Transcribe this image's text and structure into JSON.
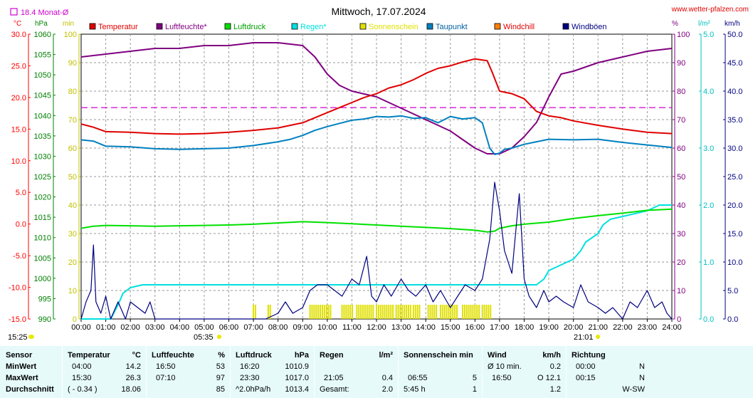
{
  "header": {
    "title": "Mittwoch, 17.07.2024",
    "url": "www.wetter-pfalzen.com",
    "monat_label": "18.4 Monat-Ø",
    "units_left": [
      "°C",
      "hPa",
      "min"
    ],
    "units_right": [
      "%",
      "l/m²",
      "km/h"
    ],
    "footer_left_time": "15:25",
    "sunrise_time": "05:35",
    "sunset_time": "21:01"
  },
  "colors": {
    "temperatur": "#e00000",
    "luftfeuchte": "#800080",
    "luftdruck": "#00e000",
    "regen": "#00e0e0",
    "sonnenschein": "#e0e000",
    "taupunkt": "#0080c0",
    "windchill": "#ff8000",
    "windboeen": "#000080",
    "monat": "#d000d0",
    "axis_temp": "#ff0000",
    "axis_hpa": "#008000",
    "axis_min": "#c0c000",
    "axis_pct": "#800080",
    "axis_rain": "#00c0c0",
    "axis_wind": "#000080"
  },
  "chart_data": {
    "type": "line",
    "title": "Mittwoch, 17.07.2024",
    "x_ticks": [
      "00:00",
      "01:00",
      "02:00",
      "03:00",
      "04:00",
      "05:00",
      "06:00",
      "07:00",
      "08:00",
      "09:00",
      "10:00",
      "11:00",
      "12:00",
      "13:00",
      "14:00",
      "15:00",
      "16:00",
      "17:00",
      "18:00",
      "19:00",
      "20:00",
      "21:00",
      "22:00",
      "23:00",
      "24:00"
    ],
    "axes": {
      "temp": {
        "unit": "°C",
        "range": [
          -15,
          30
        ],
        "ticks": [
          "30.0",
          "25.0",
          "20.0",
          "15.0",
          "10.0",
          "5.0",
          "0.0",
          "-5.0",
          "-10.0",
          "-15.0"
        ]
      },
      "hpa": {
        "unit": "hPa",
        "range": [
          990,
          1060
        ],
        "ticks": [
          "1060",
          "1055",
          "1050",
          "1045",
          "1040",
          "1035",
          "1030",
          "1025",
          "1020",
          "1015",
          "1010",
          "1005",
          "1000",
          "995",
          "990"
        ]
      },
      "min": {
        "unit": "min",
        "range": [
          0,
          100
        ],
        "ticks": [
          "100",
          "90",
          "80",
          "70",
          "60",
          "50",
          "40",
          "30",
          "20",
          "10",
          "0"
        ]
      },
      "pct": {
        "unit": "%",
        "range": [
          0,
          100
        ],
        "ticks": [
          "100",
          "90",
          "80",
          "70",
          "60",
          "50",
          "40",
          "30",
          "20",
          "10",
          "0"
        ]
      },
      "rain": {
        "unit": "l/m²",
        "range": [
          0,
          5
        ],
        "ticks": [
          "5.0",
          "4.0",
          "3.0",
          "2.0",
          "1.0",
          "0.0"
        ]
      },
      "wind": {
        "unit": "km/h",
        "range": [
          0,
          50
        ],
        "ticks": [
          "50.0",
          "45.0",
          "40.0",
          "35.0",
          "30.0",
          "25.0",
          "20.0",
          "15.0",
          "10.0",
          "5.0",
          "0.0"
        ]
      }
    },
    "monat_mittel": 18.4,
    "legend": [
      {
        "key": "temperatur",
        "label": "Temperatur"
      },
      {
        "key": "luftfeuchte",
        "label": "Luftfeuchte*"
      },
      {
        "key": "luftdruck",
        "label": "Luftdruck"
      },
      {
        "key": "regen",
        "label": "Regen*"
      },
      {
        "key": "sonnenschein",
        "label": "Sonnenschein"
      },
      {
        "key": "taupunkt",
        "label": "Taupunkt"
      },
      {
        "key": "windchill",
        "label": "Windchill"
      },
      {
        "key": "windboeen",
        "label": "Windböen"
      }
    ],
    "series": {
      "temperatur": {
        "axis": "temp",
        "x": [
          0,
          0.5,
          1,
          2,
          3,
          4,
          5,
          6,
          7,
          8,
          8.5,
          9,
          9.5,
          10,
          10.5,
          11,
          11.5,
          12,
          12.5,
          13,
          13.5,
          14,
          14.5,
          15,
          15.5,
          16,
          16.5,
          16.7,
          17,
          17.5,
          18,
          18.5,
          19,
          19.5,
          20,
          21,
          22,
          23,
          24
        ],
        "y": [
          15.8,
          15.3,
          14.6,
          14.5,
          14.3,
          14.2,
          14.3,
          14.5,
          14.8,
          15.2,
          15.6,
          16.0,
          16.8,
          17.6,
          18.4,
          19.2,
          20.0,
          20.6,
          21.5,
          22.0,
          22.8,
          23.8,
          24.6,
          25.0,
          25.6,
          26.1,
          25.8,
          24.0,
          21.0,
          20.6,
          19.8,
          17.8,
          17.1,
          16.8,
          16.3,
          15.6,
          15.0,
          14.5,
          14.3
        ]
      },
      "luftfeuchte": {
        "axis": "pct",
        "x": [
          0,
          1,
          2,
          3,
          4,
          5,
          6,
          7,
          8,
          9,
          9.5,
          10,
          10.5,
          11,
          11.5,
          12,
          12.5,
          13,
          13.5,
          14,
          14.5,
          15,
          15.5,
          16,
          16.5,
          16.7,
          17,
          17.5,
          18,
          18.5,
          19,
          19.5,
          20,
          21,
          22,
          23,
          24
        ],
        "y": [
          92,
          93,
          94,
          95,
          95,
          96,
          96,
          97,
          97,
          96,
          92,
          86,
          82,
          80,
          79,
          78,
          76,
          74,
          72,
          70,
          68,
          66,
          63,
          60,
          58,
          58,
          58,
          60,
          64,
          69,
          78,
          86,
          87,
          90,
          92,
          94,
          95
        ]
      },
      "luftdruck": {
        "axis": "hpa",
        "x": [
          0,
          0.5,
          1,
          2,
          3,
          4,
          5,
          6,
          7,
          8,
          9,
          10,
          11,
          12,
          13,
          14,
          15,
          16,
          16.5,
          16.8,
          17,
          17.5,
          18,
          19,
          20,
          21,
          22,
          23,
          24
        ],
        "y": [
          1012.3,
          1012.8,
          1013.0,
          1012.9,
          1012.8,
          1012.9,
          1013.0,
          1013.1,
          1013.3,
          1013.6,
          1013.9,
          1013.7,
          1013.4,
          1013.1,
          1012.8,
          1012.5,
          1012.2,
          1011.8,
          1011.4,
          1011.6,
          1012.3,
          1012.9,
          1013.3,
          1013.8,
          1014.7,
          1015.4,
          1016.0,
          1016.7,
          1017.0
        ]
      },
      "regen": {
        "axis": "rain",
        "x": [
          0,
          1,
          1.2,
          1.5,
          1.7,
          2,
          2.5,
          3,
          4,
          5,
          6,
          7,
          8,
          9,
          10,
          11,
          12,
          13,
          14,
          15,
          16,
          17,
          18,
          18.5,
          18.8,
          19,
          19.5,
          20,
          20.3,
          20.5,
          21,
          21.2,
          21.5,
          22,
          22.5,
          23,
          23.5,
          24
        ],
        "y": [
          0,
          0,
          0,
          0.25,
          0.45,
          0.55,
          0.6,
          0.6,
          0.6,
          0.6,
          0.6,
          0.6,
          0.6,
          0.6,
          0.6,
          0.6,
          0.6,
          0.6,
          0.6,
          0.6,
          0.6,
          0.6,
          0.6,
          0.6,
          0.7,
          0.85,
          0.95,
          1.05,
          1.2,
          1.35,
          1.5,
          1.65,
          1.75,
          1.8,
          1.85,
          1.9,
          2.0,
          2.0
        ]
      },
      "taupunkt": {
        "axis": "temp",
        "x": [
          0,
          0.5,
          1,
          2,
          3,
          4,
          5,
          6,
          7,
          8,
          8.5,
          9,
          9.5,
          10,
          10.5,
          11,
          11.5,
          12,
          12.5,
          13,
          13.5,
          14,
          14.5,
          15,
          15.5,
          16,
          16.3,
          16.6,
          16.8,
          17,
          17.2,
          17.5,
          18,
          18.5,
          19,
          20,
          21,
          22,
          23,
          24
        ],
        "y": [
          13.3,
          13.1,
          12.3,
          12.2,
          11.9,
          11.8,
          11.9,
          12.0,
          12.4,
          13.0,
          13.4,
          14.0,
          14.8,
          15.4,
          15.9,
          16.4,
          16.6,
          17.0,
          16.9,
          17.1,
          16.7,
          16.8,
          16.0,
          17.0,
          16.6,
          16.8,
          16.0,
          12.0,
          11.0,
          11.2,
          11.8,
          12.0,
          12.6,
          13.0,
          13.4,
          13.3,
          13.4,
          12.9,
          12.5,
          12.1
        ]
      },
      "windboeen": {
        "axis": "wind",
        "x": [
          0,
          0.2,
          0.4,
          0.5,
          0.6,
          0.8,
          1,
          1.2,
          1.5,
          1.8,
          2,
          2.3,
          2.6,
          2.8,
          3,
          3.5,
          4,
          4.5,
          5,
          5.5,
          6,
          6.5,
          7,
          7.5,
          8,
          8.3,
          8.6,
          9,
          9.3,
          9.6,
          10,
          10.3,
          10.6,
          11,
          11.3,
          11.6,
          11.8,
          12,
          12.3,
          12.6,
          13,
          13.3,
          13.6,
          14,
          14.3,
          14.6,
          15,
          15.3,
          15.6,
          16,
          16.3,
          16.6,
          16.8,
          17,
          17.2,
          17.5,
          17.8,
          18,
          18.2,
          18.5,
          18.8,
          19,
          19.3,
          19.6,
          20,
          20.3,
          20.6,
          21,
          21.3,
          21.6,
          22,
          22.3,
          22.6,
          23,
          23.3,
          23.6,
          23.8,
          24
        ],
        "y": [
          0,
          3,
          5,
          13,
          3,
          1,
          4,
          0,
          3,
          0,
          3,
          2,
          1,
          3,
          0,
          0,
          0,
          0,
          0,
          0,
          0,
          0,
          0,
          0,
          1,
          3,
          1,
          2,
          5,
          6,
          6,
          5,
          4,
          7,
          6,
          11,
          4,
          3,
          6,
          4,
          7,
          5,
          4,
          6,
          3,
          5,
          2,
          4,
          6,
          5,
          7,
          14,
          24,
          19,
          12,
          8,
          22,
          7,
          4,
          2,
          5,
          3,
          4,
          3,
          2,
          6,
          3,
          2,
          1,
          2,
          0,
          3,
          2,
          5,
          2,
          3,
          1,
          0
        ]
      },
      "sonnenschein": {
        "axis": "min",
        "type": "bar",
        "bins_start": [
          7.0,
          7.6,
          9.3,
          10.6,
          11.2,
          12.0,
          12.8,
          13.5,
          14.1,
          14.6,
          15.5,
          16.3
        ],
        "bins_end": [
          7.1,
          7.7,
          10.2,
          11.1,
          11.9,
          12.7,
          13.4,
          13.8,
          14.5,
          15.3,
          16.2,
          16.7
        ],
        "value": 5
      }
    }
  },
  "stats": {
    "headers": {
      "sensor": "Sensor",
      "temp": "Temperatur",
      "temp_unit": "°C",
      "feuchte": "Luftfeuchte",
      "feuchte_unit": "%",
      "druck": "Luftdruck",
      "druck_unit": "hPa",
      "regen": "Regen",
      "regen_unit": "l/m²",
      "sonne": "Sonnenschein min",
      "wind": "Wind",
      "wind_unit": "km/h",
      "richtung": "Richtung"
    },
    "rows": [
      {
        "label": "MinWert",
        "temp_t": "04:00",
        "temp_v": "14.2",
        "feu_t": "16:50",
        "feu_v": "53",
        "dr_t": "16:20",
        "dr_v": "1010.9",
        "reg_t": "",
        "reg_v": "",
        "son_t": "",
        "son_v": "",
        "wind_t": "Ø 10 min.",
        "wind_v": "0.2",
        "ri_t": "00:00",
        "ri_v": "N"
      },
      {
        "label": "MaxWert",
        "temp_t": "15:30",
        "temp_v": "26.3",
        "feu_t": "07:10",
        "feu_v": "97",
        "dr_t": "23:30",
        "dr_v": "1017.0",
        "reg_t": "21:05",
        "reg_v": "0.4",
        "son_t": "06:55",
        "son_v": "5",
        "wind_t": "16:50",
        "wind_v": "O 12.1",
        "ri_t": "00:15",
        "ri_v": "N"
      },
      {
        "label": "Durchschnitt",
        "temp_t": "( - 0.34 )",
        "temp_v": "18.06",
        "feu_t": "",
        "feu_v": "85",
        "dr_t": "^2.0hPa/h",
        "dr_v": "1013.4",
        "reg_t": "Gesamt:",
        "reg_v": "2.0",
        "son_t": "5:45 h",
        "son_v": "1",
        "wind_t": "",
        "wind_v": "1.2",
        "ri_t": "",
        "ri_v": "W-SW"
      }
    ]
  }
}
